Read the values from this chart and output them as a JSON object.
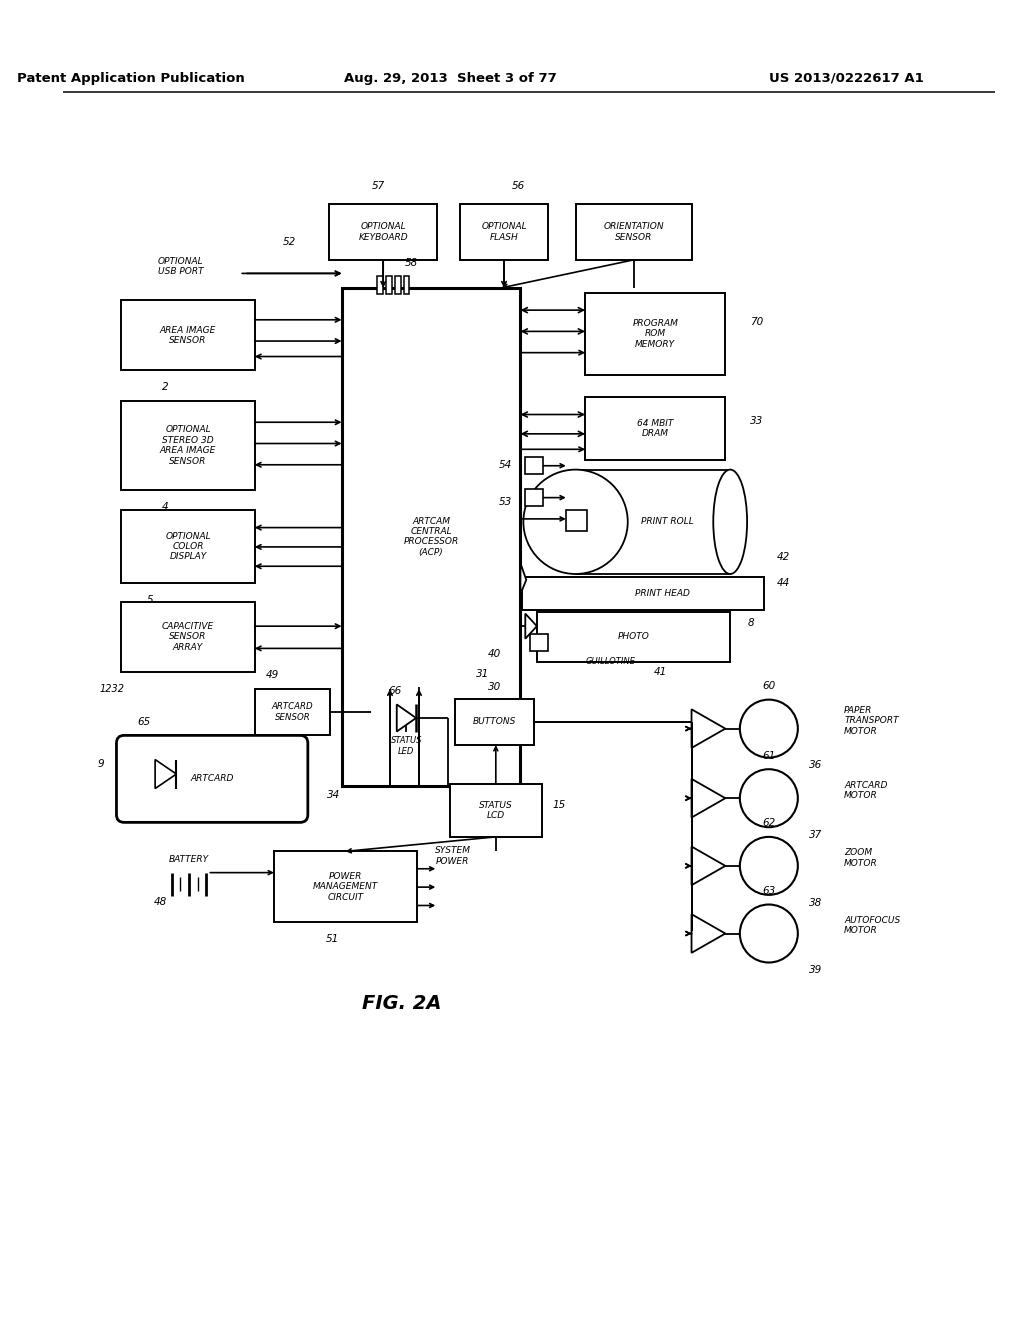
{
  "header_left": "Patent Application Publication",
  "header_center": "Aug. 29, 2013  Sheet 3 of 77",
  "header_right": "US 2013/0222617 A1",
  "fig_label": "FIG. 2A",
  "bg": "#ffffff",
  "fg": "#000000",
  "fs": 6.5,
  "fs_ref": 7.5,
  "fs_hdr": 9.5,
  "fs_fig": 14
}
